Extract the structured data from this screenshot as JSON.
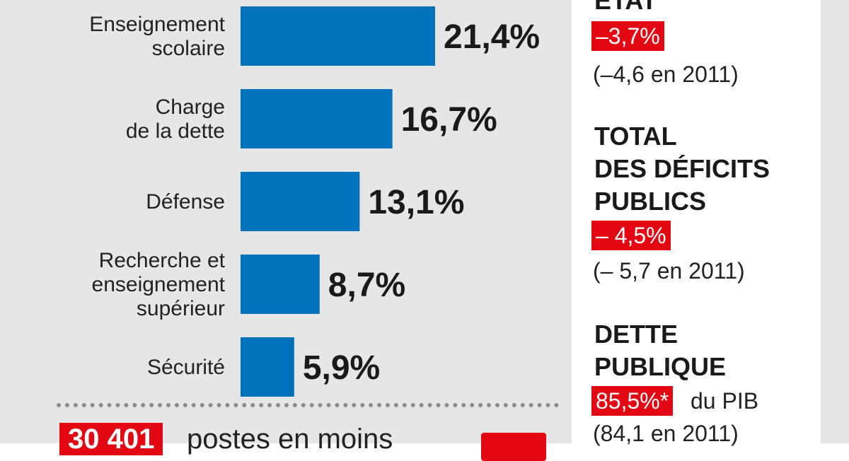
{
  "chart_data": {
    "type": "bar",
    "orientation": "horizontal",
    "categories": [
      [
        "Enseignement",
        "scolaire"
      ],
      [
        "Charge",
        "de la dette"
      ],
      [
        "Défense"
      ],
      [
        "Recherche et",
        "enseignement",
        "supérieur"
      ],
      [
        "Sécurité"
      ]
    ],
    "values": [
      21.4,
      16.7,
      13.1,
      8.7,
      5.9
    ],
    "value_labels": [
      "21,4%",
      "16,7%",
      "13,1%",
      "8,7%",
      "5,9%"
    ],
    "bar_color": "#0072bb"
  },
  "bottom": {
    "count": "30 401",
    "text": "postes en moins"
  },
  "right": {
    "etat": {
      "title": "ÉTAT",
      "value": "–3,7%",
      "note": "(–4,6 en 2011)"
    },
    "deficits": {
      "title_lines": [
        "TOTAL",
        "DES DÉFICITS",
        "PUBLICS"
      ],
      "value": "– 4,5%",
      "note": "(– 5,7 en 2011)"
    },
    "dette": {
      "title_lines": [
        "DETTE",
        "PUBLIQUE"
      ],
      "value": "85,5%*",
      "value_suffix": "du PIB",
      "note": "(84,1 en 2011)"
    }
  },
  "colors": {
    "accent_red": "#e30613",
    "panel_gray": "#e6e6e6"
  }
}
